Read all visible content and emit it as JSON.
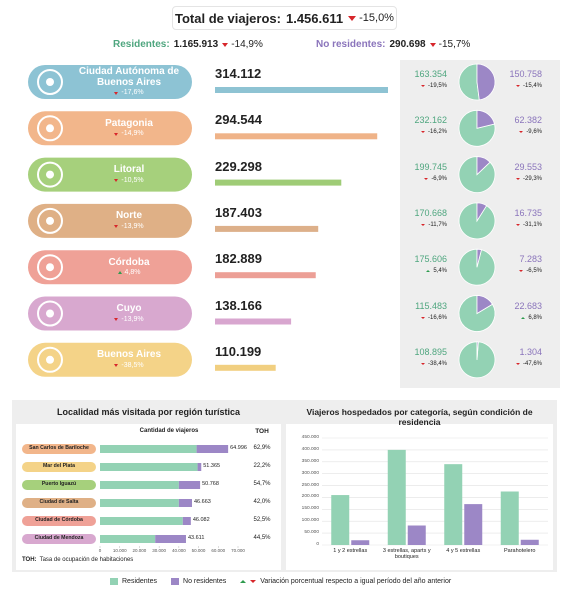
{
  "header": {
    "label": "Total de viajeros:",
    "value": "1.456.611",
    "change": "-15,0%"
  },
  "summary": {
    "residents": {
      "label": "Residentes:",
      "value": "1.165.913",
      "change": "-14,9%"
    },
    "non_residents": {
      "label": "No residentes:",
      "value": "290.698",
      "change": "-15,7%"
    }
  },
  "colors": {
    "residents": "#93d2b4",
    "non_residents": "#9c87c6",
    "residents_text": "#4fa67f",
    "non_residents_text": "#8a74bb",
    "down": "#d7262b",
    "up": "#2e9b4e"
  },
  "regions": [
    {
      "name": "Ciudad Autónoma de Buenos Aires",
      "change": "-17,6%",
      "color": "#8dc3d4",
      "bar_color": "#8ec3d3",
      "total": 314112,
      "total_label": "314.112",
      "residents": 163354,
      "residents_label": "163.354",
      "residents_change": "-19,5%",
      "non_residents": 150758,
      "non_residents_label": "150.758",
      "non_residents_change": "-15,4%"
    },
    {
      "name": "Patagonia",
      "change": "-14,9%",
      "color": "#f2b68b",
      "bar_color": "#efb388",
      "total": 294544,
      "total_label": "294.544",
      "residents": 232162,
      "residents_label": "232.162",
      "residents_change": "-16,2%",
      "non_residents": 62382,
      "non_residents_label": "62.382",
      "non_residents_change": "-9,6%"
    },
    {
      "name": "Litoral",
      "change": "-10,5%",
      "color": "#a6d07c",
      "bar_color": "#9fcc76",
      "total": 229298,
      "total_label": "229.298",
      "residents": 199745,
      "residents_label": "199.745",
      "residents_change": "-6,9%",
      "non_residents": 29553,
      "non_residents_label": "29.553",
      "non_residents_change": "-29,3%"
    },
    {
      "name": "Norte",
      "change": "-13,9%",
      "color": "#dfb086",
      "bar_color": "#ddb08a",
      "total": 187403,
      "total_label": "187.403",
      "residents": 170668,
      "residents_label": "170.668",
      "residents_change": "-11,7%",
      "non_residents": 16735,
      "non_residents_label": "16.735",
      "non_residents_change": "-31,1%"
    },
    {
      "name": "Córdoba",
      "change": "4,8%",
      "color": "#efa197",
      "bar_color": "#ec9f96",
      "total": 182889,
      "total_label": "182.889",
      "residents": 175606,
      "residents_label": "175.606",
      "residents_change": "5,4%",
      "non_residents": 7283,
      "non_residents_label": "7.283",
      "non_residents_change": "-6,5%"
    },
    {
      "name": "Cuyo",
      "change": "-13,9%",
      "color": "#d8a8cf",
      "bar_color": "#d8a6cf",
      "total": 138166,
      "total_label": "138.166",
      "residents": 115483,
      "residents_label": "115.483",
      "residents_change": "-16,6%",
      "non_residents": 22683,
      "non_residents_label": "22.683",
      "non_residents_change": "6,8%"
    },
    {
      "name": "Buenos Aires",
      "change": "-38,5%",
      "color": "#f4d388",
      "bar_color": "#f1cf80",
      "total": 110199,
      "total_label": "110.199",
      "residents": 108895,
      "residents_label": "108.895",
      "residents_change": "-38,4%",
      "non_residents": 1304,
      "non_residents_label": "1.304",
      "non_residents_change": "-47,6%"
    }
  ],
  "locality_chart": {
    "type": "bar",
    "title": "Localidad más visitada por región turística",
    "subtitle": "Cantidad de viajeros",
    "toh_header": "TOH",
    "categories": [
      "San Carlos de Bariloche",
      "Mar del Plata",
      "Puerto Iguazú",
      "Ciudad de Salta",
      "Ciudad de Córdoba",
      "Ciudad de Mendoza"
    ],
    "category_colors": [
      "#f2b68b",
      "#f4d388",
      "#a6d07c",
      "#dfb086",
      "#efa197",
      "#d8a8cf"
    ],
    "residents": [
      49000,
      49500,
      40000,
      40000,
      42000,
      28000
    ],
    "non_residents": [
      15996,
      1865,
      10768,
      6663,
      4082,
      15611
    ],
    "total_labels": [
      "64.996",
      "51.365",
      "50.768",
      "46.663",
      "46.082",
      "43.611"
    ],
    "toh": [
      "62,9%",
      "22,2%",
      "54,7%",
      "42,0%",
      "52,5%",
      "44,5%"
    ],
    "xlim": [
      0,
      70000
    ],
    "xticks": [
      0,
      {
        "value": 10000,
        "label": "10.000"
      },
      {
        "value": 20000,
        "label": "20.000"
      },
      {
        "value": 30000,
        "label": "30.000"
      },
      {
        "value": 40000,
        "label": "40.000"
      },
      {
        "value": 50000,
        "label": "50.000"
      },
      {
        "value": 60000,
        "label": "60.000"
      },
      {
        "value": 70000,
        "label": "70.000"
      }
    ],
    "footnote": {
      "abbr": "TOH:",
      "text": "Tasa de ocupación de habitaciones"
    }
  },
  "category_chart": {
    "type": "bar",
    "title": "Viajeros hospedados por categoría, según condición de residencia",
    "categories": [
      "1 y 2 estrellas",
      "3 estrellas, aparts y boutiques",
      "4 y 5 estrellas",
      "Parahotelero"
    ],
    "residents": [
      210000,
      400000,
      340000,
      225000
    ],
    "non_residents": [
      20000,
      82000,
      172000,
      22000
    ],
    "ylim": [
      0,
      450000
    ],
    "yticks": [
      0,
      {
        "value": 50000,
        "label": "50.000"
      },
      {
        "value": 100000,
        "label": "100.000"
      },
      {
        "value": 150000,
        "label": "150.000"
      },
      {
        "value": 200000,
        "label": "200.000"
      },
      {
        "value": 250000,
        "label": "250.000"
      },
      {
        "value": 300000,
        "label": "300.000"
      },
      {
        "value": 350000,
        "label": "350.000"
      },
      {
        "value": 400000,
        "label": "400.000"
      },
      {
        "value": 450000,
        "label": "450.000"
      }
    ],
    "grid": true
  },
  "legend": {
    "residents": "Residentes",
    "non_residents": "No residentes",
    "variation": "Variación porcentual respecto a igual período del año anterior"
  }
}
